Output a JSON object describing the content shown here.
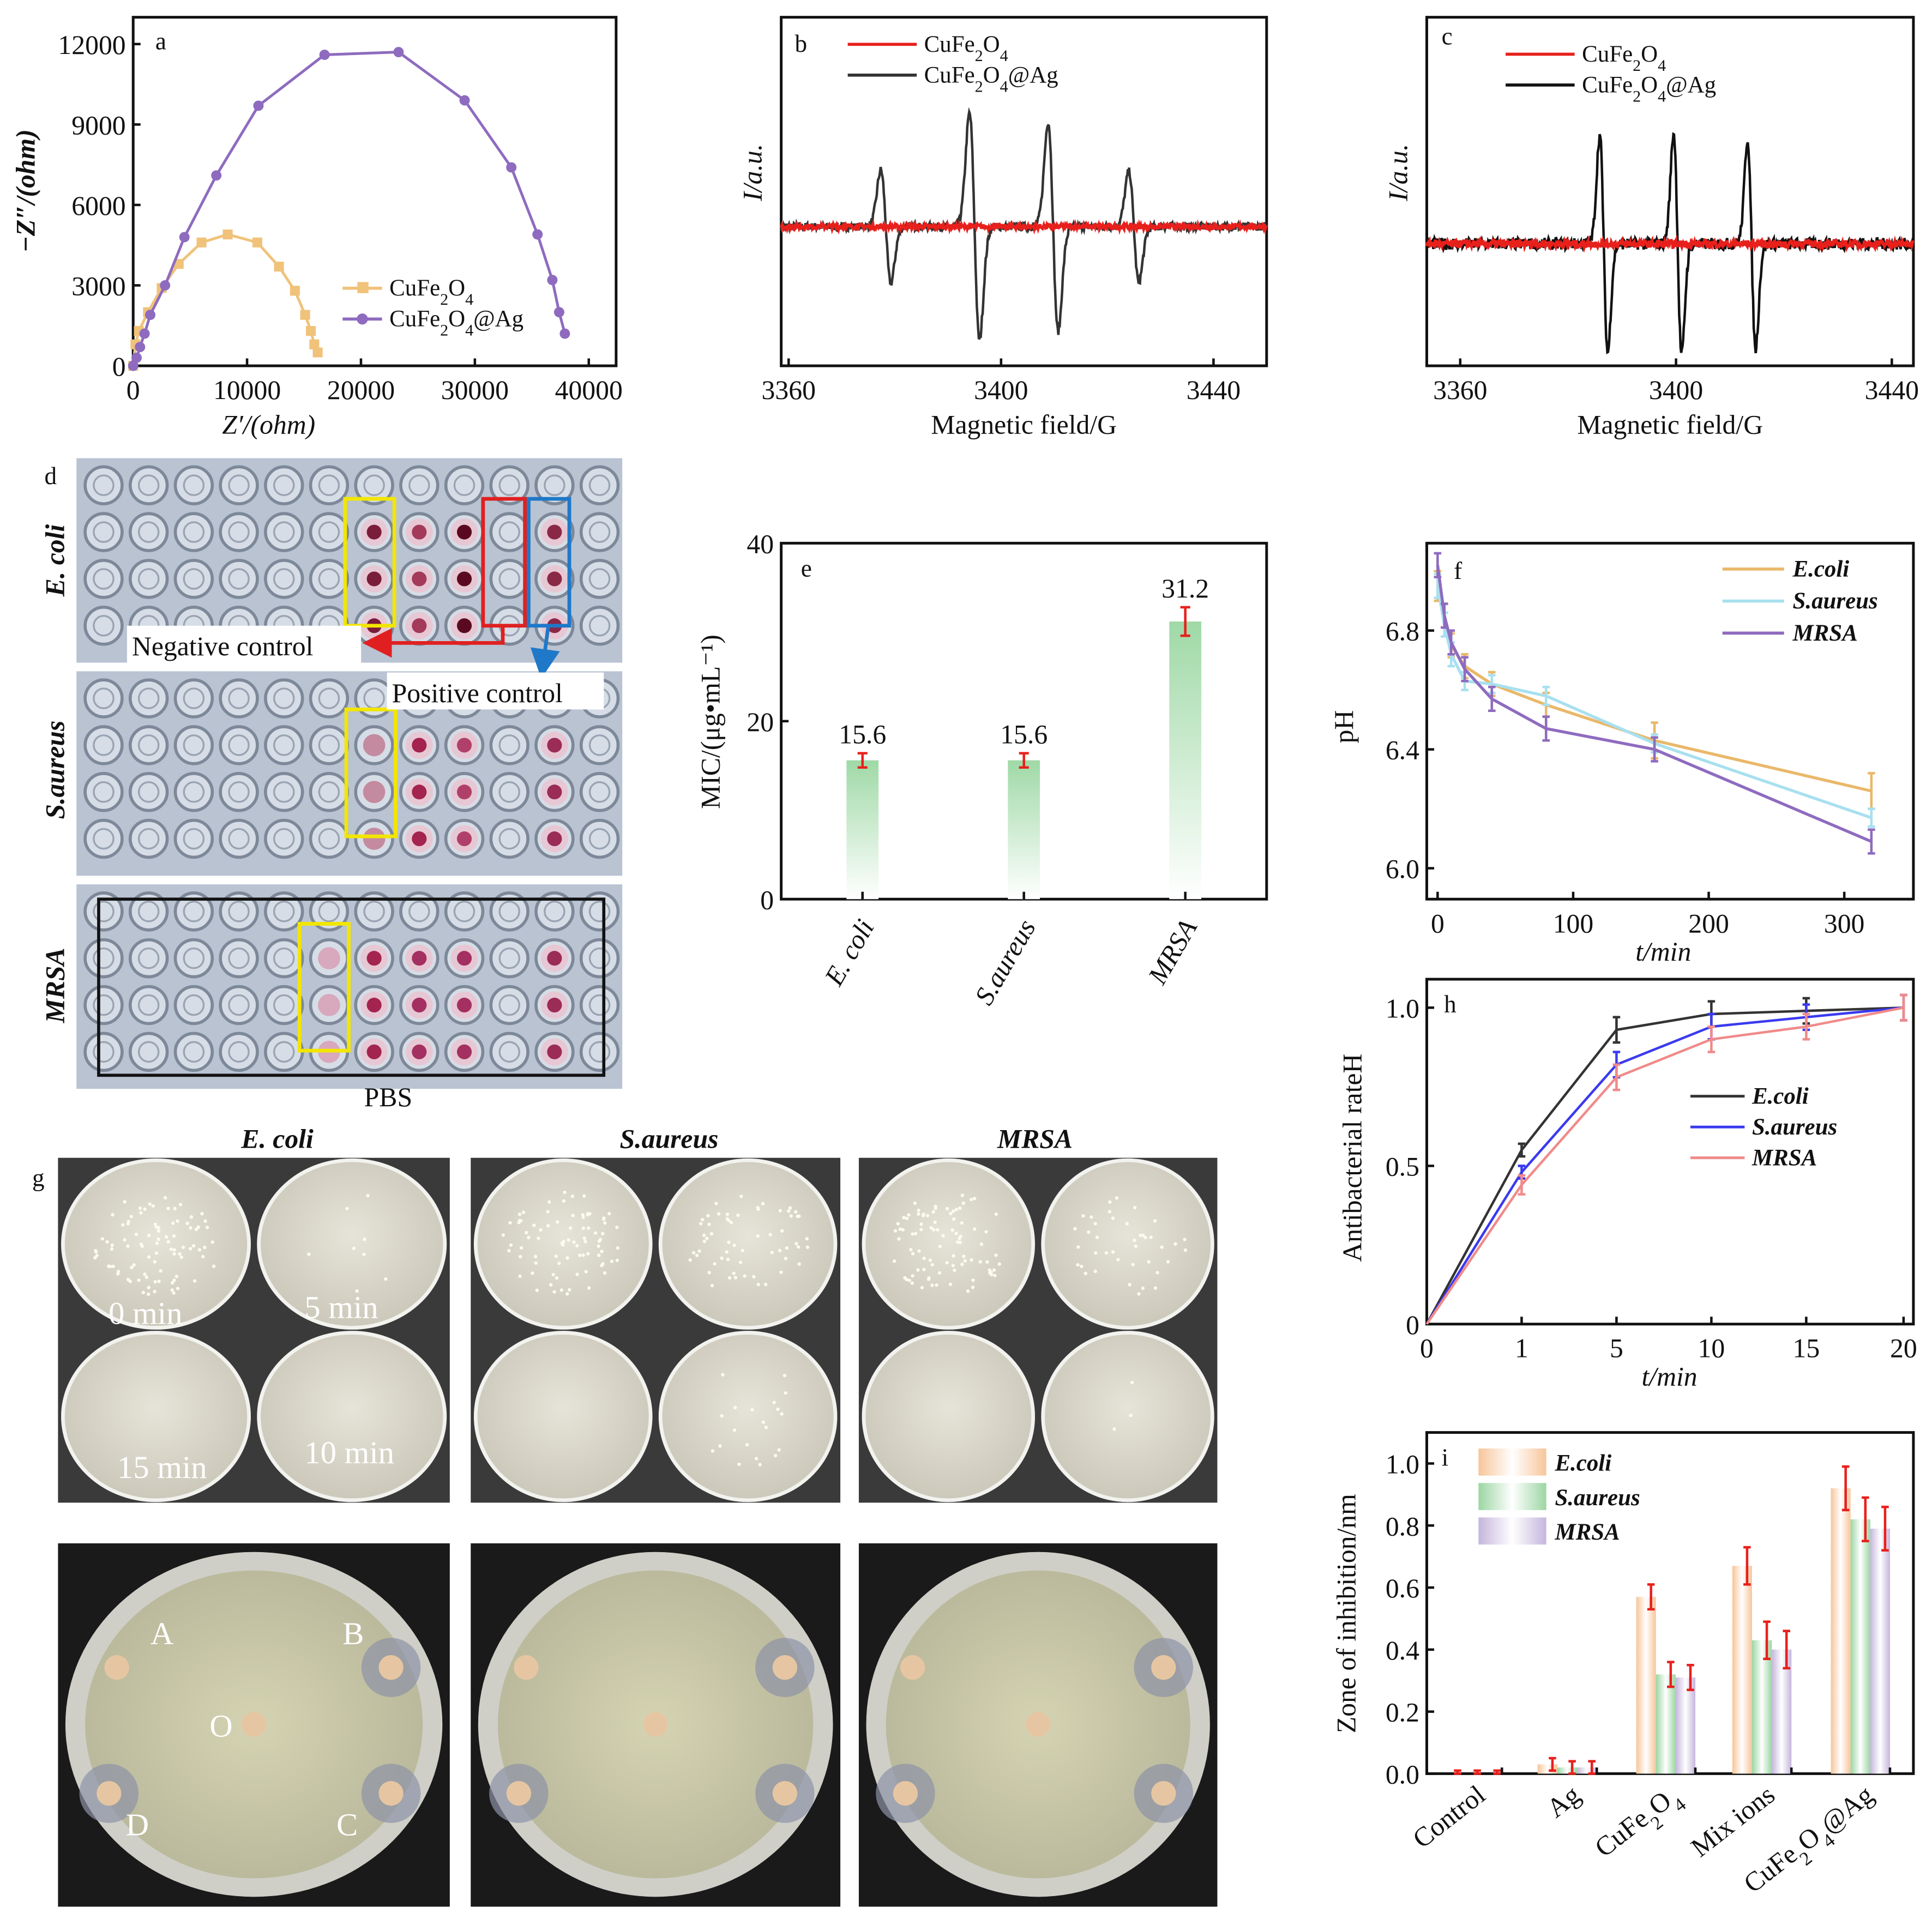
{
  "panel_labels": {
    "a": "a",
    "b": "b",
    "c": "c",
    "d": "d",
    "e": "e",
    "f": "f",
    "g": "g",
    "h": "h",
    "i": "i"
  },
  "panel_d": {
    "row_labels": [
      "E. coli",
      "S.aureus",
      "MRSA"
    ],
    "negative_control": "Negative control",
    "positive_control": "Positive control",
    "pbs": "PBS",
    "colors": {
      "highlight_yellow": "#f2e600",
      "negative_red": "#e02020",
      "positive_blue": "#1f78c8",
      "pbs_black": "#111111"
    }
  },
  "panel_g": {
    "column_titles": [
      "E. coli",
      "S.aureus",
      "MRSA"
    ],
    "time_labels": [
      "0 min",
      "5 min",
      "15 min",
      "10 min"
    ],
    "disc_labels": [
      "A",
      "B",
      "O",
      "D",
      "C"
    ]
  },
  "chart_data": [
    {
      "id": "a",
      "type": "line",
      "title": "",
      "xlabel": "Z′/(ohm)",
      "ylabel": "−Z″/(ohm)",
      "xlim": [
        0,
        42400
      ],
      "ylim": [
        0,
        13000
      ],
      "xticks": [
        "0",
        "10000",
        "20000",
        "30000",
        "40000"
      ],
      "yticks": [
        "0",
        "3000",
        "6000",
        "9000",
        "12000"
      ],
      "legend_position": "bottom-right",
      "series": [
        {
          "name": "CuFe2O4",
          "color": "#f0c27a",
          "marker": "square",
          "x": [
            0,
            200,
            500,
            1300,
            2500,
            4000,
            6000,
            8300,
            10900,
            12800,
            14200,
            15100,
            15600,
            15900,
            16200
          ],
          "y": [
            0,
            800,
            1300,
            2000,
            2900,
            3800,
            4600,
            4900,
            4600,
            3700,
            2800,
            1900,
            1300,
            800,
            500
          ]
        },
        {
          "name": "CuFe2O4@Ag",
          "color": "#8e6bbf",
          "marker": "circle",
          "x": [
            0,
            300,
            600,
            1000,
            1500,
            2800,
            4500,
            7300,
            11000,
            16800,
            23300,
            29100,
            33200,
            35500,
            36800,
            37400,
            37900
          ],
          "y": [
            0,
            300,
            700,
            1200,
            1900,
            3000,
            4800,
            7100,
            9700,
            11600,
            11700,
            9900,
            7400,
            4900,
            3200,
            2000,
            1200
          ]
        }
      ]
    },
    {
      "id": "b",
      "type": "line",
      "title": "",
      "xlabel": "Magnetic field/G",
      "ylabel": "I/a.u.",
      "xlim": [
        3358.6,
        3450
      ],
      "ylim": [
        -113,
        170
      ],
      "xticks": [
        "3360",
        "3400",
        "3440"
      ],
      "legend_position": "top-left",
      "series": [
        {
          "name": "CuFe2O4",
          "color": "#e8201c",
          "peaks": []
        },
        {
          "name": "CuFe2O4@Ag",
          "color": "#333333",
          "width_G": 0.95,
          "peaks": [
            {
              "field": 3378.3,
              "amplitude": 46
            },
            {
              "field": 3395,
              "amplitude": 92
            },
            {
              "field": 3409.8,
              "amplitude": 85
            },
            {
              "field": 3425,
              "amplitude": 45
            }
          ]
        }
      ]
    },
    {
      "id": "c",
      "type": "line",
      "title": "",
      "xlabel": "Magnetic field/G",
      "ylabel": "I/a.u.",
      "xlim": [
        3353.8,
        3444
      ],
      "ylim": [
        -99,
        184
      ],
      "xticks": [
        "3360",
        "3400",
        "3440"
      ],
      "legend_position": "top-left",
      "series": [
        {
          "name": "CuFe2O4",
          "color": "#e8201c",
          "peaks": []
        },
        {
          "name": "CuFe2O4@Ag",
          "color": "#111111",
          "width_G": 0.75,
          "peaks": [
            {
              "field": 3386.6,
              "amplitude": 88
            },
            {
              "field": 3400.3,
              "amplitude": 90
            },
            {
              "field": 3414,
              "amplitude": 85
            }
          ]
        }
      ]
    },
    {
      "id": "e",
      "type": "bar",
      "title": "",
      "xlabel": "",
      "ylabel": "MIC/(μg•mL⁻¹)",
      "ylim": [
        0,
        40
      ],
      "yticks": [
        "0",
        "20",
        "40"
      ],
      "categories": [
        "E. coli",
        "S.aureus",
        "MRSA"
      ],
      "values": [
        15.6,
        15.6,
        31.2
      ],
      "errors": [
        0.8,
        0.8,
        1.6
      ],
      "data_labels": [
        "15.6",
        "15.6",
        "31.2"
      ],
      "bar_color": "#9fd9a6",
      "error_color": "#e8201c"
    },
    {
      "id": "f",
      "type": "line",
      "title": "",
      "xlabel": "t/min",
      "ylabel": "pH",
      "xlim": [
        -8,
        351
      ],
      "ylim": [
        5.896,
        7.094
      ],
      "xticks": [
        "0",
        "100",
        "200",
        "300"
      ],
      "yticks": [
        "6.0",
        "6.4",
        "6.8"
      ],
      "legend_position": "top-right",
      "x": [
        0,
        5,
        10,
        20,
        40,
        80,
        160,
        320
      ],
      "series": [
        {
          "name": "E.coli",
          "color": "#e9b86a",
          "values": [
            6.95,
            6.85,
            6.75,
            6.68,
            6.62,
            6.55,
            6.43,
            6.26
          ],
          "errors": [
            0.05,
            0.04,
            0.04,
            0.04,
            0.04,
            0.04,
            0.06,
            0.06
          ]
        },
        {
          "name": "S.aureus",
          "color": "#a8e0ef",
          "values": [
            6.95,
            6.82,
            6.72,
            6.63,
            6.62,
            6.58,
            6.42,
            6.17
          ],
          "errors": [
            0.04,
            0.04,
            0.04,
            0.03,
            0.03,
            0.03,
            0.03,
            0.03
          ]
        },
        {
          "name": "MRSA",
          "color": "#8e6bbf",
          "values": [
            7.02,
            6.85,
            6.76,
            6.67,
            6.57,
            6.47,
            6.4,
            6.09
          ],
          "errors": [
            0.04,
            0.04,
            0.04,
            0.04,
            0.04,
            0.04,
            0.04,
            0.04
          ]
        }
      ]
    },
    {
      "id": "h",
      "type": "line",
      "title": "",
      "xlabel": "t/min",
      "ylabel": "Antibacterial rateH",
      "ylim": [
        0,
        1.09
      ],
      "yticks": [
        "0",
        "0.5",
        "1.0"
      ],
      "categories": [
        "0",
        "1",
        "5",
        "10",
        "15",
        "20"
      ],
      "legend_position": "center-right",
      "series": [
        {
          "name": "E.coli",
          "color": "#333333",
          "values": [
            0,
            0.55,
            0.93,
            0.98,
            0.99,
            1.0
          ],
          "errors": [
            0,
            0.02,
            0.04,
            0.04,
            0.04,
            0.04
          ]
        },
        {
          "name": "S.aureus",
          "color": "#3a3aef",
          "values": [
            0,
            0.48,
            0.82,
            0.94,
            0.97,
            1.0
          ],
          "errors": [
            0,
            0.02,
            0.04,
            0.04,
            0.04,
            0.04
          ]
        },
        {
          "name": "MRSA",
          "color": "#f08a8a",
          "values": [
            0,
            0.44,
            0.78,
            0.9,
            0.94,
            1.0
          ],
          "errors": [
            0,
            0.03,
            0.04,
            0.04,
            0.04,
            0.04
          ]
        }
      ]
    },
    {
      "id": "i",
      "type": "bar",
      "title": "",
      "xlabel": "",
      "ylabel": "Zone of inhibition/nm",
      "ylim": [
        0,
        1.1
      ],
      "yticks": [
        "0.0",
        "0.2",
        "0.4",
        "0.6",
        "0.8",
        "1.0"
      ],
      "categories": [
        "Control",
        "Ag",
        "CuFe2O4",
        "Mix ions",
        "CuFe2O4@Ag"
      ],
      "legend_position": "top-left",
      "error_color": "#e8201c",
      "series": [
        {
          "name": "E.coli",
          "color": "#f7c59a",
          "values": [
            0,
            0.03,
            0.57,
            0.67,
            0.92
          ],
          "errors": [
            0.01,
            0.02,
            0.04,
            0.06,
            0.07
          ]
        },
        {
          "name": "S.aureus",
          "color": "#9bd6a3",
          "values": [
            0,
            0.02,
            0.32,
            0.43,
            0.82
          ],
          "errors": [
            0.01,
            0.02,
            0.04,
            0.06,
            0.07
          ]
        },
        {
          "name": "MRSA",
          "color": "#c5b6dc",
          "values": [
            0,
            0.02,
            0.31,
            0.4,
            0.79
          ],
          "errors": [
            0.01,
            0.02,
            0.04,
            0.06,
            0.07
          ]
        }
      ]
    }
  ]
}
